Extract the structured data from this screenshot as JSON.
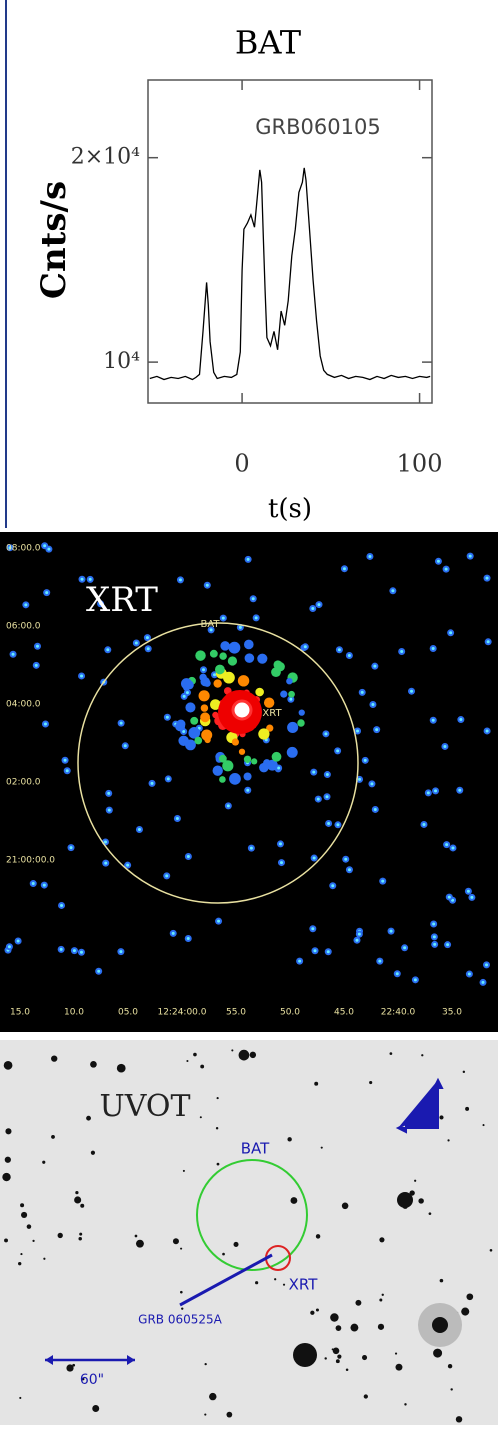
{
  "chart_data": {
    "type": "line",
    "title": "BAT",
    "annotation": "GRB060105",
    "ylabel": "Cnts/s",
    "xlabel": "t(s)",
    "color": "#000000",
    "x": [
      -52,
      -48,
      -44,
      -40,
      -36,
      -32,
      -28,
      -26,
      -24,
      -22,
      -20,
      -19,
      -18,
      -16,
      -14,
      -10,
      -6,
      -3,
      -1,
      0,
      1,
      3,
      5,
      7,
      9,
      10,
      11,
      12,
      13,
      14,
      16,
      18,
      20,
      22,
      24,
      26,
      28,
      30,
      32,
      34,
      35,
      36,
      38,
      40,
      42,
      44,
      46,
      48,
      52,
      56,
      60,
      64,
      68,
      72,
      76,
      80,
      84,
      88,
      92,
      96,
      100,
      104,
      106
    ],
    "values": [
      9200,
      9300,
      9150,
      9250,
      9200,
      9300,
      9150,
      9250,
      9400,
      11500,
      13900,
      12800,
      11000,
      9500,
      9200,
      9300,
      9250,
      9400,
      10500,
      14500,
      16500,
      16800,
      17200,
      16600,
      18500,
      19400,
      18800,
      16000,
      13500,
      11200,
      10800,
      11500,
      10600,
      12500,
      11800,
      13000,
      15200,
      16500,
      18300,
      18800,
      19500,
      18900,
      16500,
      14000,
      12000,
      10300,
      9600,
      9400,
      9250,
      9350,
      9200,
      9300,
      9250,
      9150,
      9300,
      9200,
      9350,
      9250,
      9300,
      9200,
      9300,
      9250,
      9300
    ],
    "xlim": [
      -53,
      107
    ],
    "ylim": [
      8000,
      23800
    ],
    "xticks": [
      0,
      100
    ],
    "yticks": [
      {
        "value": 10000,
        "label": "10⁴"
      },
      {
        "value": 20000,
        "label": "2×10⁴"
      }
    ]
  },
  "xrt_panel": {
    "title": "XRT",
    "bat_label": "BAT",
    "xrt_label": "XRT",
    "x_labels": [
      "15.0",
      "10.0",
      "05.0",
      "12:24:00.0",
      "55.0",
      "50.0",
      "45.0",
      "22:40.0",
      "35.0"
    ],
    "y_labels": [
      "08:00.0",
      "06:00.0",
      "04:00.0",
      "02:00.0",
      "21:00:00.0"
    ]
  },
  "uvot_panel": {
    "title": "UVOT",
    "bat_label": "BAT",
    "xrt_label": "XRT",
    "grb_label": "GRB 060525A",
    "scale_label": "60\""
  }
}
